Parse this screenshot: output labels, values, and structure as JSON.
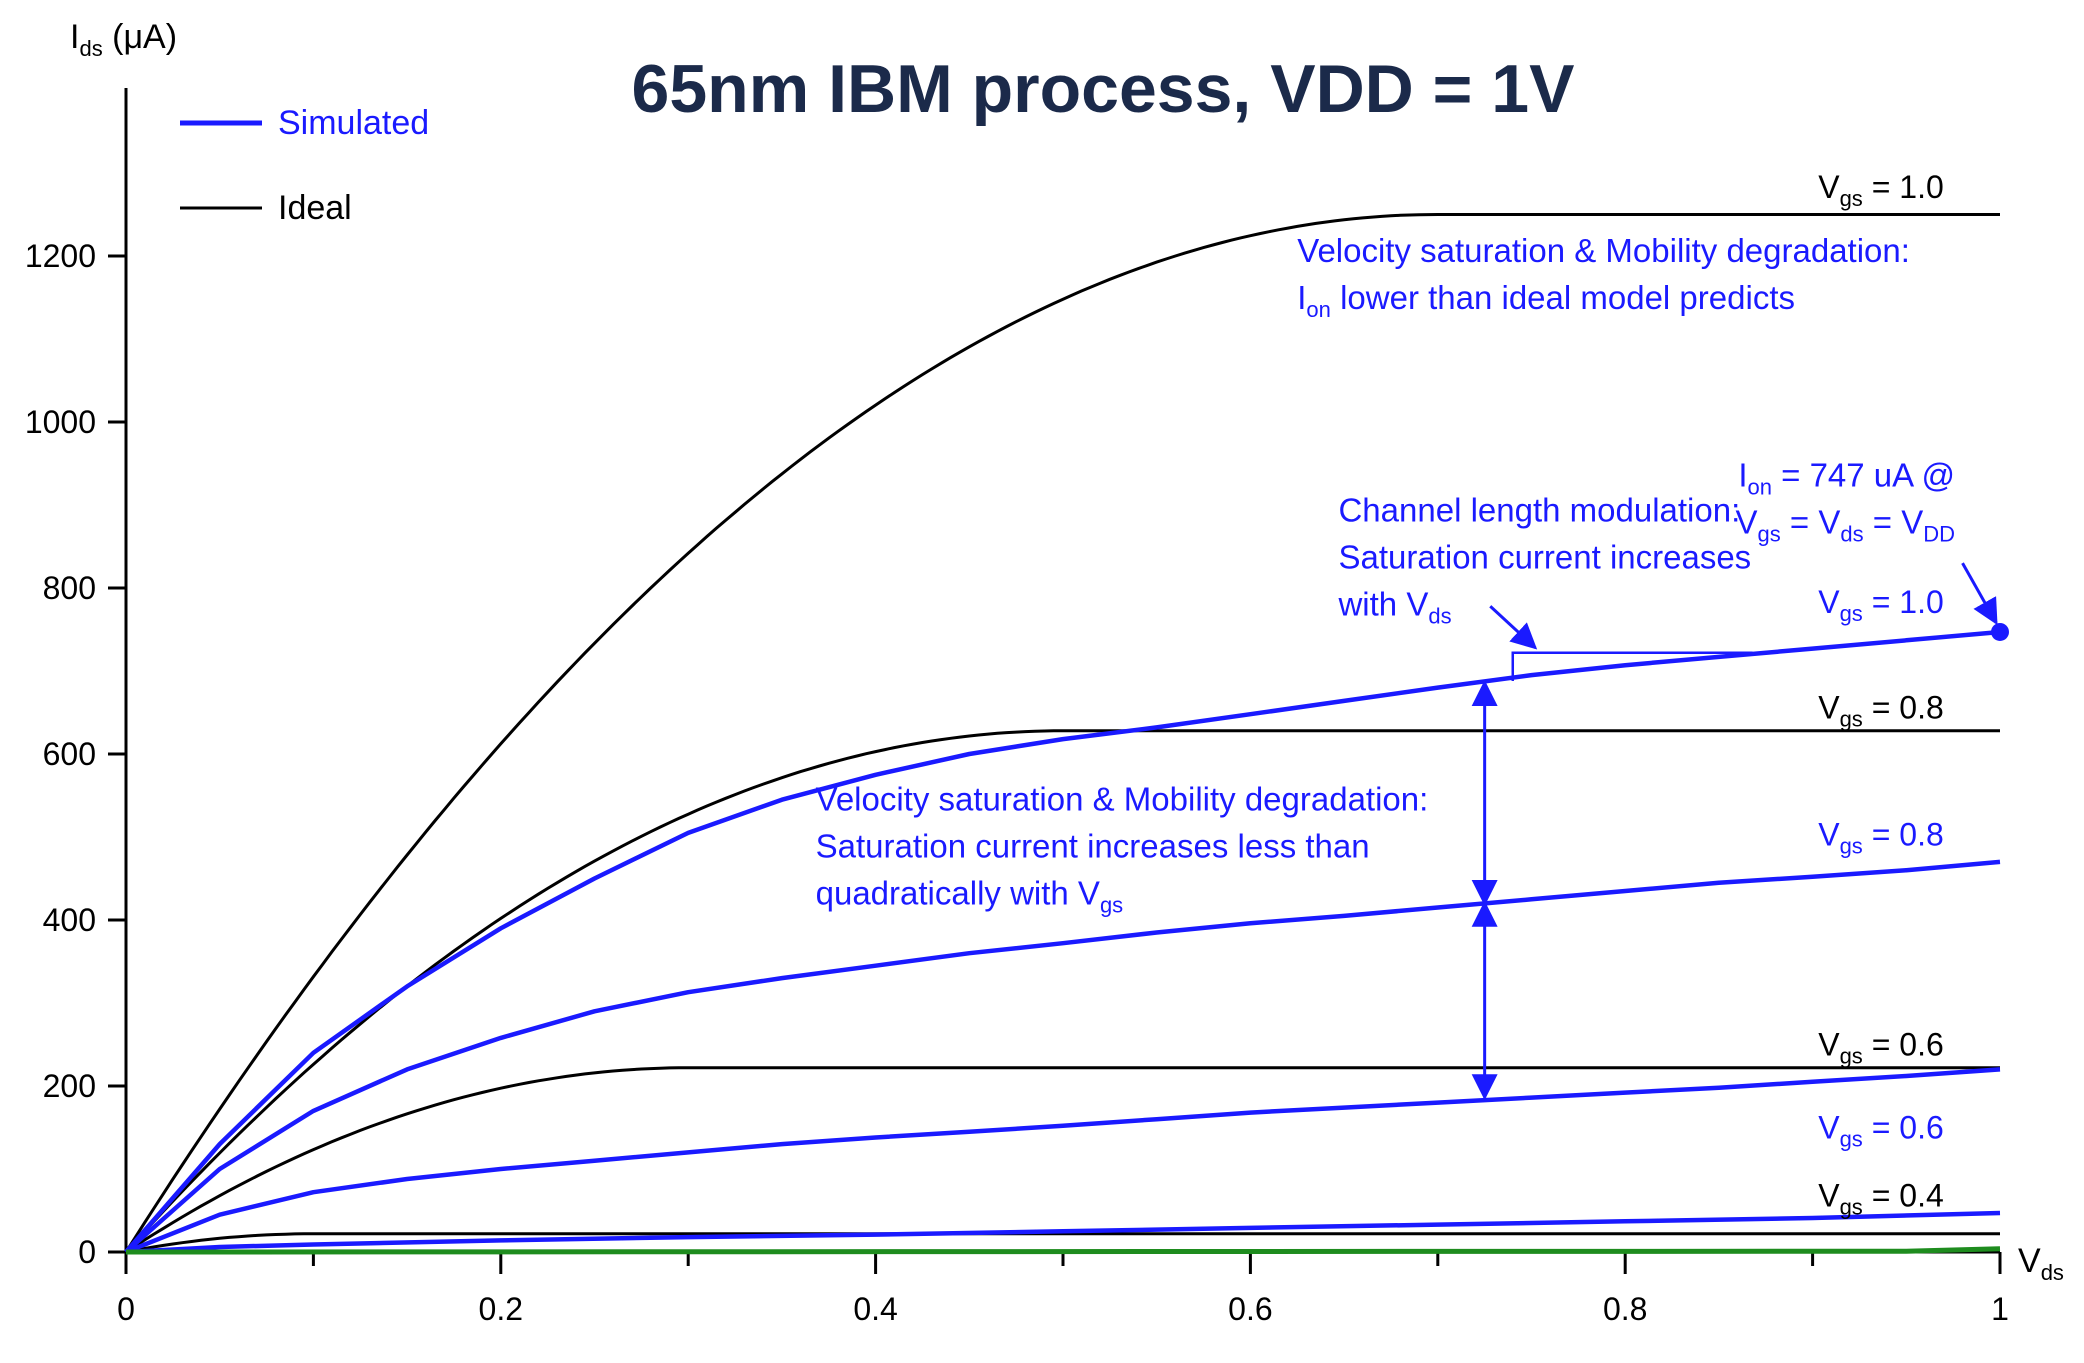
{
  "chart_data": {
    "type": "line",
    "title": "65nm IBM process, VDD = 1V",
    "xlabel": "V",
    "xlabel_sub": "ds",
    "ylabel": "I",
    "ylabel_sub": "ds",
    "ylabel_unit": " (μA)",
    "xlim": [
      0,
      1
    ],
    "ylim": [
      0,
      1300
    ],
    "xticks": [
      0,
      0.2,
      0.4,
      0.6,
      0.8,
      1
    ],
    "xtick_labels": [
      "0",
      "0.2",
      "0.4",
      "0.6",
      "0.8",
      "1"
    ],
    "yticks": [
      0,
      200,
      400,
      600,
      800,
      1000,
      1200
    ],
    "ytick_labels": [
      "0",
      "200",
      "400",
      "600",
      "800",
      "1000",
      "1200"
    ],
    "grid": false,
    "legend": [
      {
        "label": "Simulated",
        "color": "#1a1aff"
      },
      {
        "label": "Ideal",
        "color": "#000000"
      }
    ],
    "colors": {
      "simulated": "#1a1aff",
      "ideal": "#000000",
      "leakage": "#1e8c1e"
    },
    "vt": 0.3,
    "series": [
      {
        "kind": "ideal",
        "vgs": 1.0,
        "saturation_current": 1250
      },
      {
        "kind": "ideal",
        "vgs": 0.8,
        "saturation_current": 628
      },
      {
        "kind": "ideal",
        "vgs": 0.6,
        "saturation_current": 222
      },
      {
        "kind": "ideal",
        "vgs": 0.4,
        "saturation_current": 22
      },
      {
        "kind": "simulated",
        "vgs": 1.0,
        "x": [
          0,
          0.05,
          0.1,
          0.15,
          0.2,
          0.25,
          0.3,
          0.35,
          0.4,
          0.45,
          0.5,
          0.55,
          0.6,
          0.65,
          0.7,
          0.75,
          0.8,
          0.85,
          0.9,
          0.95,
          1.0
        ],
        "y": [
          0,
          130,
          240,
          320,
          390,
          450,
          505,
          545,
          575,
          600,
          618,
          632,
          648,
          664,
          680,
          695,
          707,
          717,
          727,
          737,
          747
        ]
      },
      {
        "kind": "simulated",
        "vgs": 0.8,
        "x": [
          0,
          0.05,
          0.1,
          0.15,
          0.2,
          0.25,
          0.3,
          0.35,
          0.4,
          0.45,
          0.5,
          0.55,
          0.6,
          0.65,
          0.7,
          0.75,
          0.8,
          0.85,
          0.9,
          0.95,
          1.0
        ],
        "y": [
          0,
          100,
          170,
          220,
          258,
          290,
          313,
          330,
          345,
          360,
          372,
          385,
          396,
          405,
          415,
          425,
          435,
          445,
          452,
          460,
          470
        ]
      },
      {
        "kind": "simulated",
        "vgs": 0.6,
        "x": [
          0,
          0.05,
          0.1,
          0.15,
          0.2,
          0.25,
          0.3,
          0.35,
          0.4,
          0.45,
          0.5,
          0.55,
          0.6,
          0.65,
          0.7,
          0.75,
          0.8,
          0.85,
          0.9,
          0.95,
          1.0
        ],
        "y": [
          0,
          45,
          72,
          88,
          100,
          110,
          120,
          130,
          138,
          145,
          152,
          160,
          168,
          174,
          180,
          186,
          192,
          198,
          205,
          212,
          220
        ]
      },
      {
        "kind": "simulated",
        "vgs": 0.4,
        "x": [
          0,
          0.05,
          0.1,
          0.2,
          0.3,
          0.4,
          0.5,
          0.6,
          0.7,
          0.8,
          0.9,
          1.0
        ],
        "y": [
          0,
          6,
          9,
          14,
          18,
          21,
          25,
          29,
          33,
          37,
          41,
          47
        ]
      },
      {
        "kind": "leakage",
        "x": [
          0,
          0.95,
          1.0
        ],
        "y": [
          0,
          1,
          4
        ]
      }
    ],
    "curve_labels": [
      {
        "text": "V",
        "sub": "gs",
        "rest": " = 1.0",
        "color": "#000000",
        "x": 0.97,
        "y": 1270
      },
      {
        "text": "V",
        "sub": "gs",
        "rest": " = 0.8",
        "color": "#000000",
        "x": 0.97,
        "y": 643
      },
      {
        "text": "V",
        "sub": "gs",
        "rest": " = 0.6",
        "color": "#000000",
        "x": 0.97,
        "y": 237
      },
      {
        "text": "V",
        "sub": "gs",
        "rest": " = 0.4",
        "color": "#000000",
        "x": 0.97,
        "y": 55
      },
      {
        "text": "V",
        "sub": "gs",
        "rest": " = 1.0",
        "color": "#1a1aff",
        "x": 0.97,
        "y": 770
      },
      {
        "text": "V",
        "sub": "gs",
        "rest": " = 0.8",
        "color": "#1a1aff",
        "x": 0.97,
        "y": 490
      },
      {
        "text": "V",
        "sub": "gs",
        "rest": " = 0.6",
        "color": "#1a1aff",
        "x": 0.97,
        "y": 137
      }
    ],
    "annotations": [
      {
        "id": "anno-velocity-ion",
        "lines": [
          [
            {
              "t": "Velocity saturation & Mobility degradation:"
            }
          ],
          [
            {
              "t": "I"
            },
            {
              "t": "on",
              "sub": true
            },
            {
              "t": " lower than ideal model predicts"
            }
          ]
        ],
        "x": 0.625,
        "y": 1193
      },
      {
        "id": "anno-clm",
        "lines": [
          [
            {
              "t": "Channel length modulation:"
            }
          ],
          [
            {
              "t": "Saturation current increases"
            }
          ],
          [
            {
              "t": "with V"
            },
            {
              "t": "ds",
              "sub": true
            }
          ]
        ],
        "x": 0.647,
        "y": 880
      },
      {
        "id": "anno-ion-value",
        "anchor": "end",
        "lines": [
          [
            {
              "t": "I"
            },
            {
              "t": "on",
              "sub": true
            },
            {
              "t": " = 747 uA @"
            }
          ],
          [
            {
              "t": "V"
            },
            {
              "t": "gs",
              "sub": true
            },
            {
              "t": " = V"
            },
            {
              "t": "ds",
              "sub": true
            },
            {
              "t": " = V"
            },
            {
              "t": "DD",
              "sub": true
            }
          ]
        ],
        "x": 0.976,
        "y": 922
      },
      {
        "id": "anno-velocity-quad",
        "lines": [
          [
            {
              "t": "Velocity saturation & Mobility degradation:"
            }
          ],
          [
            {
              "t": "Saturation current increases less than"
            }
          ],
          [
            {
              "t": "quadratically with V"
            },
            {
              "t": "gs",
              "sub": true
            }
          ]
        ],
        "x": 0.368,
        "y": 532
      }
    ]
  }
}
